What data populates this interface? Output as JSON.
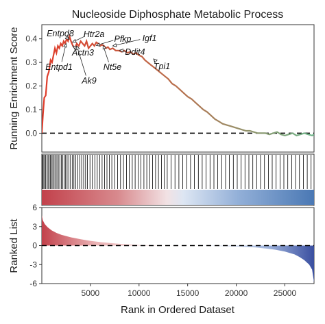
{
  "chart_data": {
    "type": "line",
    "title": "Nucleoside Diphosphate Metabolic Process",
    "n_genes": 28000,
    "colors": {
      "curve_start": "#e03b2a",
      "curve_end": "#6fb58a",
      "positive_rank": "#c2414b",
      "negative_rank": "#4a78b4",
      "grid_border": "#333333"
    },
    "enrichment_panel": {
      "ylabel": "Running Enrichment Score",
      "yticks": [
        0.0,
        0.1,
        0.2,
        0.3,
        0.4
      ],
      "ytick_labels": [
        "0.0",
        "0.1",
        "0.2",
        "0.3",
        "0.4"
      ],
      "ylim": [
        -0.08,
        0.46
      ],
      "baseline": 0.0,
      "series": [
        {
          "x": [
            0,
            120,
            250,
            400,
            560,
            720,
            900,
            1050,
            1200,
            1350,
            1500,
            1650,
            1800,
            1950,
            2100,
            2250,
            2400,
            2550,
            2700,
            2850,
            3000,
            3200,
            3400,
            3600,
            3800,
            4000,
            4200,
            4400,
            4600,
            4800,
            5000,
            5200,
            5400,
            5600,
            5800,
            6000,
            6200,
            6400,
            6600,
            6800,
            7000,
            7300,
            7600,
            7900,
            8200,
            8500,
            8800,
            9100,
            9400,
            9700,
            10000,
            10300,
            10600,
            10900,
            11200,
            11500,
            11800,
            12100,
            12400,
            12700,
            13000,
            13400,
            13800,
            14200,
            14600,
            15000,
            15400,
            15800,
            16200,
            16600,
            17000,
            17400,
            17800,
            18200,
            18600,
            19000,
            19400,
            19800,
            20200,
            20600,
            21000,
            21400,
            21800,
            22200,
            22600,
            23000,
            23400,
            23800,
            24200,
            24600,
            25000,
            25400,
            25800,
            26200,
            26600,
            27000,
            27400,
            27800,
            28000
          ],
          "y": [
            0.0,
            0.08,
            0.15,
            0.16,
            0.24,
            0.26,
            0.31,
            0.3,
            0.33,
            0.36,
            0.34,
            0.37,
            0.36,
            0.38,
            0.37,
            0.39,
            0.38,
            0.4,
            0.39,
            0.41,
            0.39,
            0.37,
            0.36,
            0.38,
            0.37,
            0.39,
            0.38,
            0.37,
            0.39,
            0.36,
            0.37,
            0.38,
            0.37,
            0.385,
            0.38,
            0.37,
            0.375,
            0.37,
            0.36,
            0.365,
            0.355,
            0.36,
            0.35,
            0.35,
            0.345,
            0.35,
            0.34,
            0.345,
            0.335,
            0.34,
            0.33,
            0.325,
            0.31,
            0.3,
            0.29,
            0.28,
            0.27,
            0.26,
            0.25,
            0.24,
            0.23,
            0.21,
            0.2,
            0.185,
            0.17,
            0.155,
            0.145,
            0.13,
            0.115,
            0.1,
            0.09,
            0.075,
            0.06,
            0.05,
            0.04,
            0.035,
            0.03,
            0.025,
            0.02,
            0.015,
            0.01,
            0.01,
            0.005,
            0.0,
            0.0,
            0.0,
            -0.005,
            0.0,
            0.005,
            -0.005,
            -0.01,
            -0.005,
            0.0,
            -0.01,
            -0.005,
            0.0,
            -0.005,
            -0.01,
            -0.005
          ]
        }
      ]
    },
    "annotations": [
      {
        "label": "Entpd8",
        "x": 2800,
        "y": 0.398
      },
      {
        "label": "Htr2a",
        "x": 3150,
        "y": 0.386
      },
      {
        "label": "Pfkp",
        "x": 5600,
        "y": 0.372
      },
      {
        "label": "Igf1",
        "x": 7300,
        "y": 0.37
      },
      {
        "label": "Actn3",
        "x": 3200,
        "y": 0.37
      },
      {
        "label": "Ddit4",
        "x": 8000,
        "y": 0.352
      },
      {
        "label": "Entpd1",
        "x": 2500,
        "y": 0.38
      },
      {
        "label": "Nt5e",
        "x": 6300,
        "y": 0.372
      },
      {
        "label": "Tpi1",
        "x": 11500,
        "y": 0.315
      },
      {
        "label": "Ak9",
        "x": 3600,
        "y": 0.37
      }
    ],
    "hit_positions": [
      60,
      150,
      260,
      390,
      520,
      640,
      760,
      880,
      1000,
      1130,
      1260,
      1400,
      1550,
      1700,
      1850,
      2000,
      2150,
      2300,
      2450,
      2600,
      2780,
      2950,
      3150,
      3300,
      3500,
      3700,
      3900,
      4100,
      4300,
      4500,
      4700,
      4950,
      5200,
      5450,
      5700,
      5950,
      6200,
      6450,
      6700,
      6950,
      7200,
      7500,
      7800,
      8100,
      8400,
      8700,
      9000,
      9300,
      9600,
      9900,
      10200,
      10500,
      10800,
      11100,
      11400,
      11700,
      12000,
      12300,
      12600,
      12900,
      13300,
      13700,
      14100,
      14500,
      14900,
      15300,
      15700,
      16100,
      16500,
      16900,
      17300,
      17700,
      18100,
      18500,
      18900,
      19300,
      19700,
      20100,
      20500,
      20900,
      21300,
      21700,
      22100,
      22500,
      22900,
      23300,
      23700,
      24100,
      24500,
      24900,
      25300,
      25700,
      26100,
      26500,
      26900,
      27300,
      27700
    ],
    "ranked_list_panel": {
      "ylabel": "Ranked List",
      "xlabel": "Rank in Ordered Dataset",
      "yticks": [
        -6,
        -3,
        0,
        3,
        6
      ],
      "ytick_labels": [
        "-6",
        "-3",
        "0",
        "3",
        "6"
      ],
      "ylim": [
        -6,
        6
      ],
      "xticks": [
        5000,
        10000,
        15000,
        20000,
        25000
      ],
      "xtick_labels": [
        "5000",
        "10000",
        "15000",
        "20000",
        "25000"
      ],
      "xlim": [
        0,
        28000
      ],
      "metric": {
        "x": [
          0,
          100,
          300,
          600,
          1000,
          1500,
          2000,
          3000,
          4000,
          5000,
          6000,
          7000,
          8000,
          9000,
          10000,
          12000,
          14000,
          16000,
          18000,
          20000,
          22000,
          23000,
          24000,
          25000,
          26000,
          26500,
          27000,
          27500,
          27800,
          28000
        ],
        "y": [
          4.8,
          4.0,
          3.4,
          2.9,
          2.4,
          2.0,
          1.7,
          1.3,
          1.0,
          0.75,
          0.55,
          0.4,
          0.28,
          0.18,
          0.1,
          0.03,
          0.0,
          -0.03,
          -0.08,
          -0.15,
          -0.3,
          -0.45,
          -0.65,
          -0.95,
          -1.4,
          -1.8,
          -2.3,
          -3.0,
          -3.8,
          -5.8
        ]
      }
    }
  }
}
